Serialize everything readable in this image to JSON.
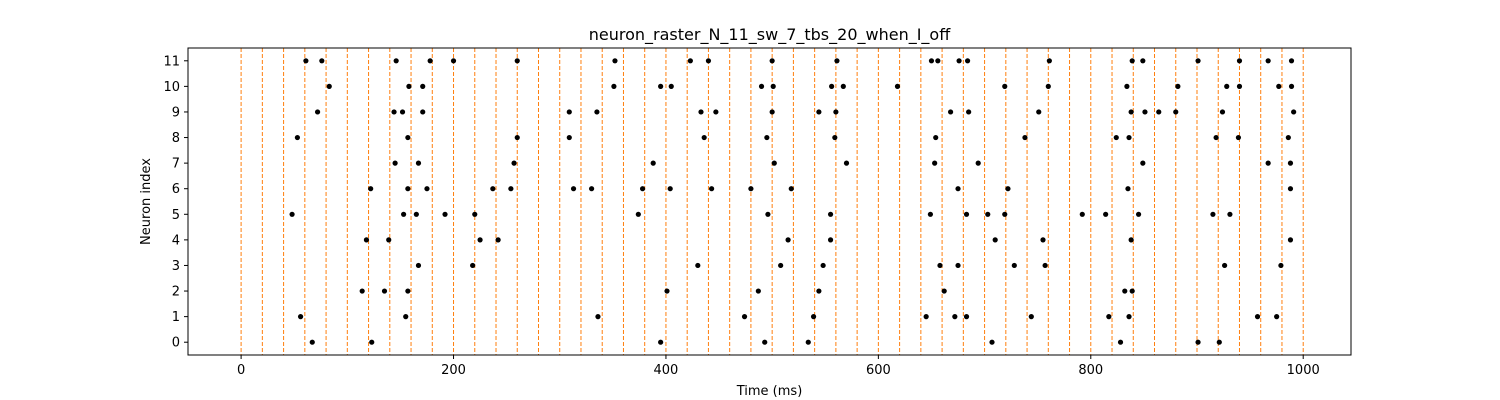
{
  "chart_data": {
    "type": "scatter",
    "title": "neuron_raster_N_11_sw_7_tbs_20_when_I_off",
    "xlabel": "Time (ms)",
    "ylabel": "Neuron index",
    "xlim": [
      -50,
      1045
    ],
    "ylim": [
      -0.5,
      11.5
    ],
    "xticks": [
      0,
      200,
      400,
      600,
      800,
      1000
    ],
    "yticks": [
      0,
      1,
      2,
      3,
      4,
      5,
      6,
      7,
      8,
      9,
      10,
      11
    ],
    "grid": false,
    "spike_color": "#000000",
    "reference_line_color": "#ff7f0e",
    "reference_lines_ms": [
      0,
      20,
      40,
      60,
      80,
      100,
      120,
      140,
      160,
      180,
      200,
      220,
      240,
      260,
      280,
      300,
      320,
      340,
      360,
      380,
      400,
      420,
      440,
      460,
      480,
      500,
      520,
      540,
      560,
      580,
      600,
      620,
      640,
      660,
      680,
      700,
      720,
      740,
      760,
      780,
      800,
      820,
      840,
      860,
      880,
      900,
      920,
      940,
      960,
      980,
      1000
    ],
    "spikes": [
      {
        "neuron": 0,
        "times": [
          67,
          123,
          395,
          493,
          534,
          707,
          828,
          901,
          921
        ]
      },
      {
        "neuron": 1,
        "times": [
          56,
          155,
          336,
          474,
          539,
          645,
          672,
          683,
          744,
          817,
          836,
          957,
          975
        ]
      },
      {
        "neuron": 2,
        "times": [
          114,
          135,
          157,
          401,
          487,
          544,
          662,
          832,
          839
        ]
      },
      {
        "neuron": 3,
        "times": [
          167,
          218,
          430,
          508,
          548,
          658,
          675,
          728,
          757,
          926,
          979
        ]
      },
      {
        "neuron": 4,
        "times": [
          118,
          139,
          225,
          242,
          515,
          555,
          710,
          755,
          838,
          988
        ]
      },
      {
        "neuron": 5,
        "times": [
          48,
          153,
          165,
          192,
          220,
          374,
          496,
          555,
          649,
          683,
          703,
          719,
          792,
          814,
          845,
          915,
          931
        ]
      },
      {
        "neuron": 6,
        "times": [
          122,
          157,
          175,
          237,
          254,
          313,
          330,
          378,
          404,
          443,
          480,
          518,
          675,
          722,
          835,
          988
        ]
      },
      {
        "neuron": 7,
        "times": [
          145,
          167,
          257,
          388,
          502,
          570,
          653,
          694,
          849,
          967,
          988
        ]
      },
      {
        "neuron": 8,
        "times": [
          53,
          157,
          260,
          309,
          436,
          495,
          559,
          654,
          738,
          824,
          836,
          918,
          939,
          986
        ]
      },
      {
        "neuron": 9,
        "times": [
          72,
          144,
          152,
          171,
          309,
          335,
          433,
          447,
          500,
          544,
          560,
          668,
          685,
          751,
          838,
          851,
          864,
          880,
          924,
          991
        ]
      },
      {
        "neuron": 10,
        "times": [
          83,
          158,
          171,
          351,
          395,
          405,
          490,
          501,
          556,
          567,
          618,
          719,
          760,
          834,
          882,
          928,
          940,
          977,
          989
        ]
      },
      {
        "neuron": 11,
        "times": [
          61,
          76,
          146,
          178,
          200,
          260,
          352,
          423,
          440,
          500,
          561,
          650,
          656,
          676,
          684,
          761,
          839,
          849,
          901,
          940,
          967,
          989
        ]
      }
    ]
  }
}
